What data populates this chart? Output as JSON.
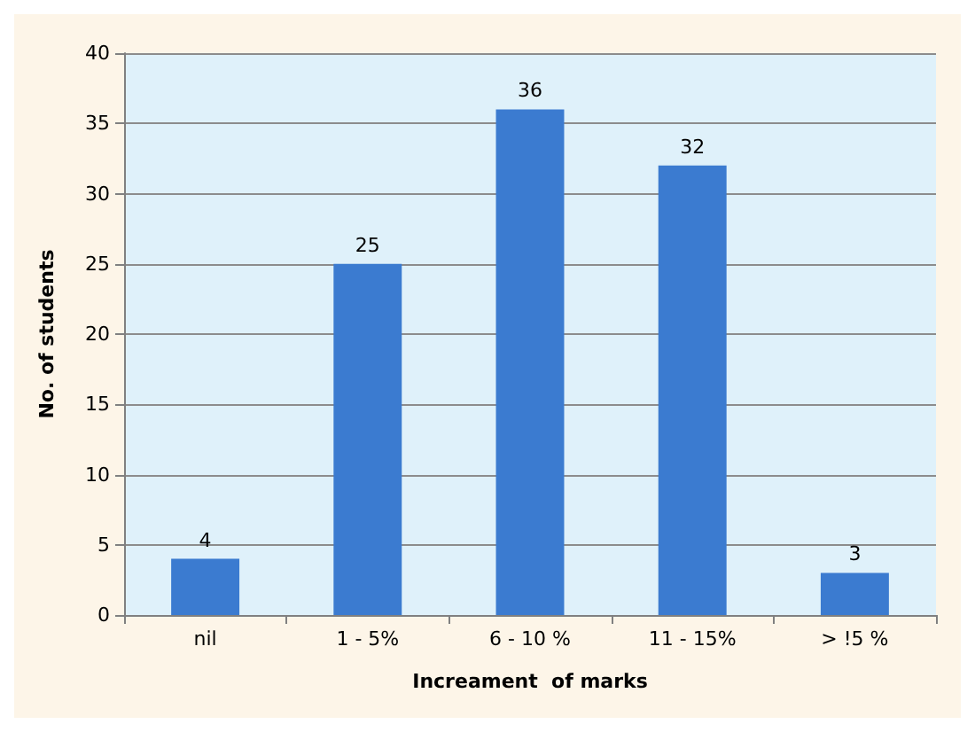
{
  "chart_data": {
    "type": "bar",
    "xlabel": "Increament  of marks",
    "ylabel": "No. of students",
    "categories": [
      "nil",
      "1 - 5%",
      "6 - 10 %",
      "11 - 15%",
      "> !5 %"
    ],
    "values": [
      4,
      25,
      36,
      32,
      3
    ],
    "color": "#3b7bd0",
    "ylim": [
      0,
      40
    ],
    "yticks": [
      0,
      5,
      10,
      15,
      20,
      25,
      30,
      35,
      40
    ],
    "grid": "y",
    "data_labels": true
  }
}
